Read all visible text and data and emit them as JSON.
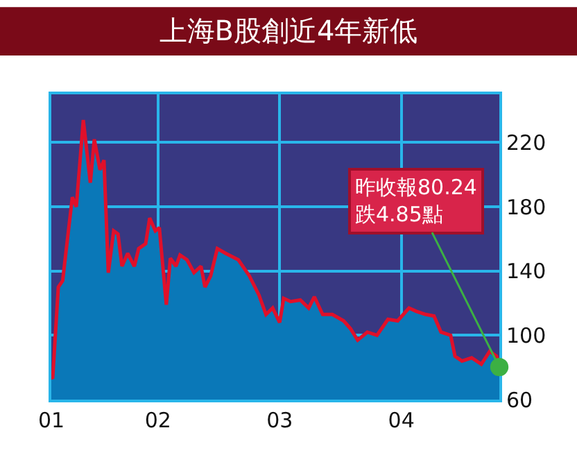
{
  "chart_data": {
    "type": "area",
    "title": "上海B股創近4年新低",
    "x": [
      "2001-02-15",
      "2001-02-19",
      "2001-03-08",
      "2001-03-21",
      "2001-04-19",
      "2001-05-01",
      "2001-05-22",
      "2001-06-12",
      "2001-06-24",
      "2001-07-11",
      "2001-07-23",
      "2001-08-05",
      "2001-08-21",
      "2001-09-03",
      "2001-09-15",
      "2001-10-02",
      "2001-10-22",
      "2001-11-04",
      "2001-11-25",
      "2001-12-07",
      "2001-12-24",
      "2002-01-05",
      "2002-01-26",
      "2002-02-07",
      "2002-02-24",
      "2002-03-08",
      "2002-03-29",
      "2002-04-19",
      "2002-05-10",
      "2002-05-22",
      "2002-06-08",
      "2002-06-28",
      "2002-07-23",
      "2002-08-30",
      "2002-10-02",
      "2002-10-31",
      "2002-11-21",
      "2002-12-11",
      "2003-01-01",
      "2003-01-13",
      "2003-02-03",
      "2003-03-04",
      "2003-03-29",
      "2003-04-15",
      "2003-05-10",
      "2003-06-08",
      "2003-07-12",
      "2003-08-02",
      "2003-08-23",
      "2003-09-21",
      "2003-10-20",
      "2003-11-22",
      "2003-12-21",
      "2004-01-24",
      "2004-02-14",
      "2004-03-14",
      "2004-04-08",
      "2004-04-29",
      "2004-05-28",
      "2004-06-10",
      "2004-07-01",
      "2004-07-30",
      "2004-08-28",
      "2004-09-22",
      "2004-10-13",
      "2004-10-21"
    ],
    "series": [
      {
        "color": "#0a78b8",
        "values": [
          74,
          73,
          130,
          134,
          186,
          180,
          234,
          195,
          222,
          203,
          209,
          139,
          165,
          163,
          143,
          151,
          143,
          154,
          157,
          173,
          165,
          167,
          119,
          148,
          143,
          150,
          147,
          139,
          143,
          130,
          137,
          154,
          151,
          147,
          137,
          125,
          113,
          117,
          108,
          123,
          121,
          122,
          117,
          124,
          113,
          113,
          109,
          104,
          97,
          102,
          100,
          110,
          109,
          117,
          115,
          113,
          112,
          102,
          100,
          87,
          84,
          86,
          82,
          90,
          87,
          80.24
        ]
      },
      {
        "type": "line",
        "color": "#e0102a",
        "values": [
          74,
          73,
          130,
          134,
          186,
          180,
          234,
          195,
          222,
          203,
          209,
          139,
          165,
          163,
          143,
          151,
          143,
          154,
          157,
          173,
          165,
          167,
          119,
          148,
          143,
          150,
          147,
          139,
          143,
          130,
          137,
          154,
          151,
          147,
          137,
          125,
          113,
          117,
          108,
          123,
          121,
          122,
          117,
          124,
          113,
          113,
          109,
          104,
          97,
          102,
          100,
          110,
          109,
          117,
          115,
          113,
          112,
          102,
          100,
          87,
          84,
          86,
          82,
          90,
          87,
          80.24
        ]
      }
    ],
    "xlim": [
      "2001-02-15",
      "2004-10-21"
    ],
    "xticks": [
      {
        "value": "2001-02-15",
        "label": "01"
      },
      {
        "value": "2002-01-01",
        "label": "02"
      },
      {
        "value": "2003-01-01",
        "label": "03"
      },
      {
        "value": "2004-01-01",
        "label": "04"
      }
    ],
    "ylim": [
      60,
      250
    ],
    "yticks": [
      60,
      100,
      140,
      180,
      220
    ],
    "grid": true,
    "legend": false,
    "marker": "none",
    "line_style": "solid",
    "annotations": [
      {
        "text": "昨收報80.24\n跌4.85點",
        "x": "2004-10-21",
        "y": 80.24
      }
    ]
  }
}
